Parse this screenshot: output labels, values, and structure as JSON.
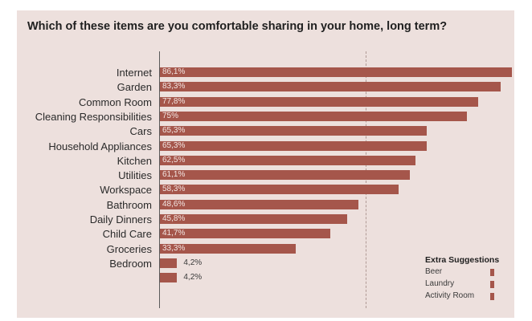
{
  "chart_data": {
    "type": "bar",
    "orientation": "horizontal",
    "title": "Which of these items are you comfortable sharing in your home, long term?",
    "categories": [
      "Internet",
      "Garden",
      "Common Room",
      "Cleaning Responsibilities",
      "Cars",
      "Household Appliances",
      "Kitchen",
      "Utilities",
      "Workspace",
      "Bathroom",
      "Daily Dinners",
      "Child Care",
      "Groceries",
      "Bedroom",
      ""
    ],
    "values": [
      86.1,
      83.3,
      77.8,
      75,
      65.3,
      65.3,
      62.5,
      61.1,
      58.3,
      48.6,
      45.8,
      41.7,
      33.3,
      4.2,
      4.2
    ],
    "value_labels": [
      "86,1%",
      "83,3%",
      "77,8%",
      "75%",
      "65,3%",
      "65,3%",
      "62,5%",
      "61,1%",
      "58,3%",
      "48,6%",
      "45,8%",
      "41,7%",
      "33,3%",
      "4,2%",
      "4,2%"
    ],
    "xlim": [
      0,
      100
    ],
    "reference_line": 50,
    "color": "#a5564b",
    "background": "#ede0dd",
    "legend": {
      "title": "Extra Suggestions",
      "items": [
        "Beer",
        "Laundry",
        "Activity Room"
      ],
      "placement": "bottom-right"
    }
  }
}
